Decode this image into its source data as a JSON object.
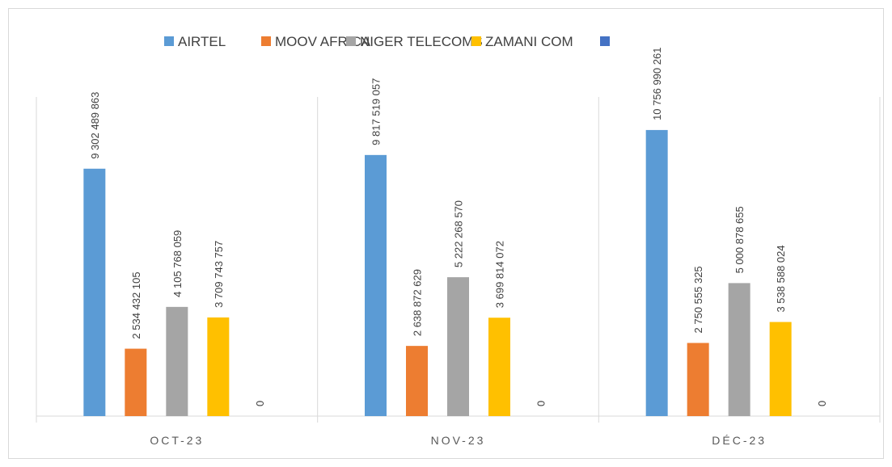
{
  "chart_data": {
    "type": "bar",
    "categories": [
      "OCT-23",
      "NOV-23",
      "DÉC-23"
    ],
    "series": [
      {
        "name": "AIRTEL",
        "color": "#5b9bd5",
        "values": [
          9302489863,
          9817519057,
          10756990261
        ],
        "value_labels": [
          "9 302 489 863",
          "9 817 519 057",
          "10 756 990 261"
        ]
      },
      {
        "name": "MOOV AFRICA",
        "color": "#ed7d31",
        "values": [
          2534432105,
          2638872629,
          2750555325
        ],
        "value_labels": [
          "2 534 432 105",
          "2 638 872 629",
          "2 750 555 325"
        ]
      },
      {
        "name": "NIGER TELECOMS",
        "color": "#a5a5a5",
        "values": [
          4105768059,
          5222268570,
          5000878655
        ],
        "value_labels": [
          "4 105 768 059",
          "5 222 268 570",
          "5 000 878 655"
        ]
      },
      {
        "name": "ZAMANI COM",
        "color": "#ffc000",
        "values": [
          3709743757,
          3699814072,
          3538588024
        ],
        "value_labels": [
          "3 709 743 757",
          "3 699 814 072",
          "3 538 588 024"
        ]
      },
      {
        "color": "#4472c4",
        "values": [
          0,
          0,
          0
        ]
      }
    ],
    "ylim": [
      0,
      12000000000
    ],
    "legend": "top"
  }
}
